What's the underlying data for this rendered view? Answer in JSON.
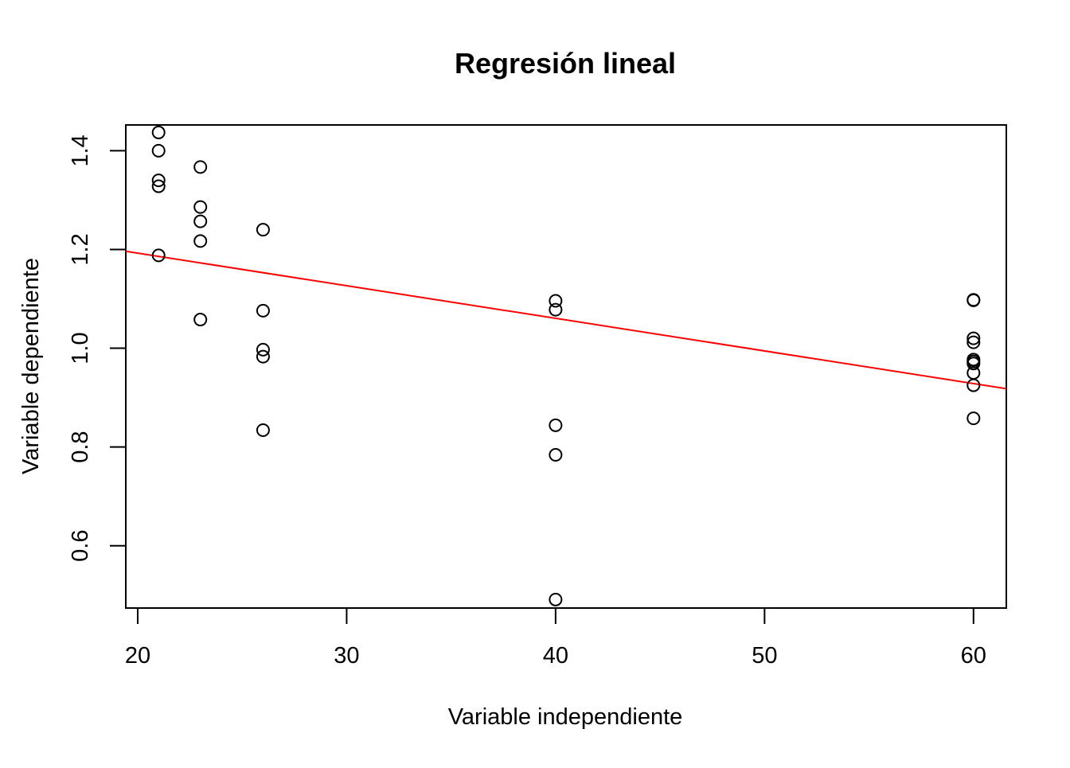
{
  "chart_data": {
    "type": "scatter",
    "title": "Regresión lineal",
    "xlabel": "Variable independiente",
    "ylabel": "Variable dependiente",
    "xlim": [
      19.43,
      61.57
    ],
    "ylim": [
      0.4738,
      1.4522
    ],
    "x_ticks": [
      20,
      30,
      40,
      50,
      60
    ],
    "y_ticks": [
      0.6,
      0.8,
      1.0,
      1.2,
      1.4
    ],
    "x_tick_labels": [
      "20",
      "30",
      "40",
      "50",
      "60"
    ],
    "y_tick_labels": [
      "0.6",
      "0.8",
      "1.0",
      "1.2",
      "1.4"
    ],
    "grid": false,
    "legend": "none",
    "series": [
      {
        "points": [
          {
            "x": 21,
            "y": 1.437
          },
          {
            "x": 21,
            "y": 1.4
          },
          {
            "x": 21,
            "y": 1.34
          },
          {
            "x": 21,
            "y": 1.328
          },
          {
            "x": 21,
            "y": 1.188
          },
          {
            "x": 23,
            "y": 1.367
          },
          {
            "x": 23,
            "y": 1.286
          },
          {
            "x": 23,
            "y": 1.257
          },
          {
            "x": 23,
            "y": 1.217
          },
          {
            "x": 23,
            "y": 1.058
          },
          {
            "x": 26,
            "y": 1.24
          },
          {
            "x": 26,
            "y": 1.076
          },
          {
            "x": 26,
            "y": 0.997
          },
          {
            "x": 26,
            "y": 0.983
          },
          {
            "x": 26,
            "y": 0.834
          },
          {
            "x": 40,
            "y": 1.096
          },
          {
            "x": 40,
            "y": 1.078
          },
          {
            "x": 40,
            "y": 0.844
          },
          {
            "x": 40,
            "y": 0.784
          },
          {
            "x": 40,
            "y": 0.491
          },
          {
            "x": 60,
            "y": 1.097
          },
          {
            "x": 60,
            "y": 1.098
          },
          {
            "x": 60,
            "y": 1.02
          },
          {
            "x": 60,
            "y": 1.012
          },
          {
            "x": 60,
            "y": 0.977
          },
          {
            "x": 60,
            "y": 0.973
          },
          {
            "x": 60,
            "y": 0.969
          },
          {
            "x": 60,
            "y": 0.95
          },
          {
            "x": 60,
            "y": 0.925
          },
          {
            "x": 60,
            "y": 0.858
          }
        ]
      }
    ],
    "regression_line": {
      "intercept": 1.3247,
      "slope": -0.006604,
      "color": "#ff0000"
    },
    "point_color": "#000000",
    "frame_color": "#000000"
  }
}
